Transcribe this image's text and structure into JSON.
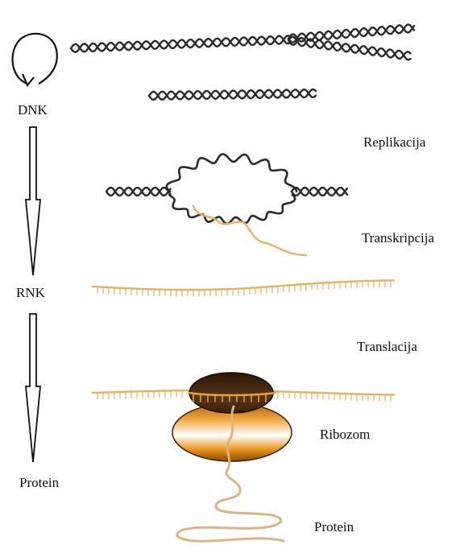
{
  "left_column": {
    "dna": "DNK",
    "rna": "RNK",
    "protein": "Protein"
  },
  "processes": {
    "replication": "Replikacija",
    "transcription": "Transkripcija",
    "translation": "Translacija"
  },
  "parts": {
    "ribosome": "Ribozom",
    "protein": "Protein"
  },
  "colors": {
    "dna_strand": "#2a2a2a",
    "rna_strand": "#e8b060",
    "ribosome_small": "#4a2c12",
    "ribosome_large": "#d98a10",
    "protein_chain": "#d9b583"
  },
  "icons": [
    "circular-arrow-icon",
    "down-arrow-icon",
    "down-arrow-icon"
  ]
}
